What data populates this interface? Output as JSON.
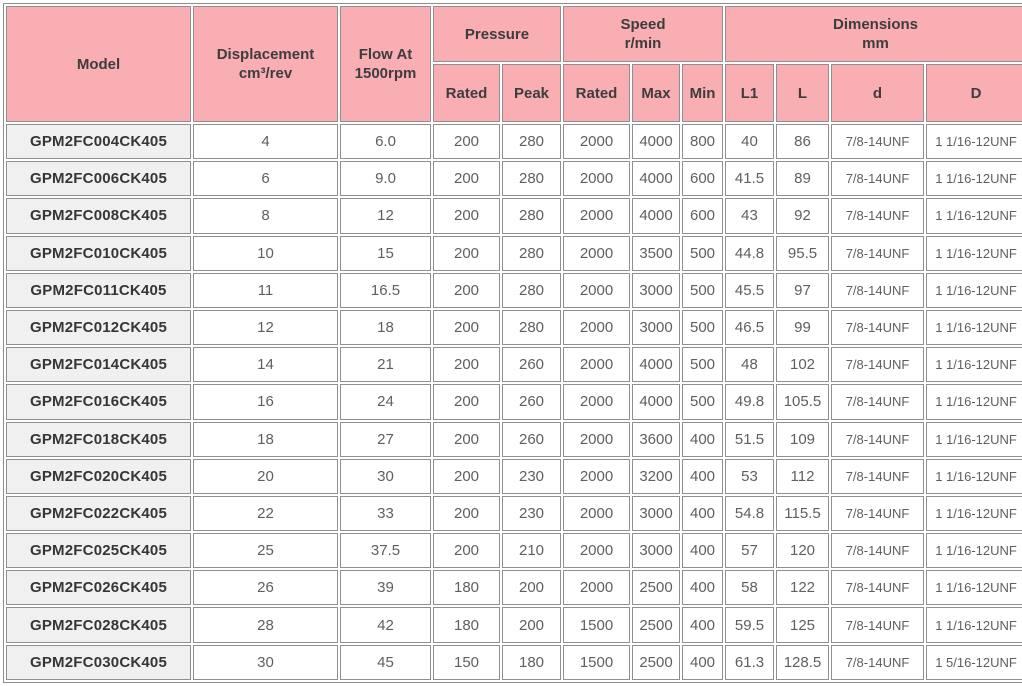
{
  "colors": {
    "header_background": "#f9aeb4",
    "model_column_background": "#f0f0f0",
    "grid_border": "#8f8f8f",
    "header_text": "#3d3d3d",
    "data_text": "#5f5f5f"
  },
  "table": {
    "header": {
      "model": "Model",
      "displacement_line1": "Displacement",
      "displacement_line2": "cm³/rev",
      "flow_line1": "Flow At",
      "flow_line2": "1500rpm",
      "pressure": "Pressure",
      "speed_line1": "Speed",
      "speed_line2": "r/min",
      "dimensions_line1": "Dimensions",
      "dimensions_line2": "mm",
      "pressure_rated": "Rated",
      "pressure_peak": "Peak",
      "speed_rated": "Rated",
      "speed_max": "Max",
      "speed_min": "Min",
      "l1": "L1",
      "l": "L",
      "d": "d",
      "D": "D"
    },
    "columns": [
      "model",
      "displacement",
      "flow",
      "pressure_rated",
      "pressure_peak",
      "speed_rated",
      "speed_max",
      "speed_min",
      "l1",
      "l",
      "d",
      "D"
    ],
    "rows": [
      {
        "model": "GPM2FC004CK405",
        "displacement": "4",
        "flow": "6.0",
        "pressure_rated": "200",
        "pressure_peak": "280",
        "speed_rated": "2000",
        "speed_max": "4000",
        "speed_min": "800",
        "l1": "40",
        "l": "86",
        "d": "7/8-14UNF",
        "D": "1 1/16-12UNF"
      },
      {
        "model": "GPM2FC006CK405",
        "displacement": "6",
        "flow": "9.0",
        "pressure_rated": "200",
        "pressure_peak": "280",
        "speed_rated": "2000",
        "speed_max": "4000",
        "speed_min": "600",
        "l1": "41.5",
        "l": "89",
        "d": "7/8-14UNF",
        "D": "1 1/16-12UNF"
      },
      {
        "model": "GPM2FC008CK405",
        "displacement": "8",
        "flow": "12",
        "pressure_rated": "200",
        "pressure_peak": "280",
        "speed_rated": "2000",
        "speed_max": "4000",
        "speed_min": "600",
        "l1": "43",
        "l": "92",
        "d": "7/8-14UNF",
        "D": "1 1/16-12UNF"
      },
      {
        "model": "GPM2FC010CK405",
        "displacement": "10",
        "flow": "15",
        "pressure_rated": "200",
        "pressure_peak": "280",
        "speed_rated": "2000",
        "speed_max": "3500",
        "speed_min": "500",
        "l1": "44.8",
        "l": "95.5",
        "d": "7/8-14UNF",
        "D": "1 1/16-12UNF"
      },
      {
        "model": "GPM2FC011CK405",
        "displacement": "11",
        "flow": "16.5",
        "pressure_rated": "200",
        "pressure_peak": "280",
        "speed_rated": "2000",
        "speed_max": "3000",
        "speed_min": "500",
        "l1": "45.5",
        "l": "97",
        "d": "7/8-14UNF",
        "D": "1 1/16-12UNF"
      },
      {
        "model": "GPM2FC012CK405",
        "displacement": "12",
        "flow": "18",
        "pressure_rated": "200",
        "pressure_peak": "280",
        "speed_rated": "2000",
        "speed_max": "3000",
        "speed_min": "500",
        "l1": "46.5",
        "l": "99",
        "d": "7/8-14UNF",
        "D": "1 1/16-12UNF"
      },
      {
        "model": "GPM2FC014CK405",
        "displacement": "14",
        "flow": "21",
        "pressure_rated": "200",
        "pressure_peak": "260",
        "speed_rated": "2000",
        "speed_max": "4000",
        "speed_min": "500",
        "l1": "48",
        "l": "102",
        "d": "7/8-14UNF",
        "D": "1 1/16-12UNF"
      },
      {
        "model": "GPM2FC016CK405",
        "displacement": "16",
        "flow": "24",
        "pressure_rated": "200",
        "pressure_peak": "260",
        "speed_rated": "2000",
        "speed_max": "4000",
        "speed_min": "500",
        "l1": "49.8",
        "l": "105.5",
        "d": "7/8-14UNF",
        "D": "1 1/16-12UNF"
      },
      {
        "model": "GPM2FC018CK405",
        "displacement": "18",
        "flow": "27",
        "pressure_rated": "200",
        "pressure_peak": "260",
        "speed_rated": "2000",
        "speed_max": "3600",
        "speed_min": "400",
        "l1": "51.5",
        "l": "109",
        "d": "7/8-14UNF",
        "D": "1 1/16-12UNF"
      },
      {
        "model": "GPM2FC020CK405",
        "displacement": "20",
        "flow": "30",
        "pressure_rated": "200",
        "pressure_peak": "230",
        "speed_rated": "2000",
        "speed_max": "3200",
        "speed_min": "400",
        "l1": "53",
        "l": "112",
        "d": "7/8-14UNF",
        "D": "1 1/16-12UNF"
      },
      {
        "model": "GPM2FC022CK405",
        "displacement": "22",
        "flow": "33",
        "pressure_rated": "200",
        "pressure_peak": "230",
        "speed_rated": "2000",
        "speed_max": "3000",
        "speed_min": "400",
        "l1": "54.8",
        "l": "115.5",
        "d": "7/8-14UNF",
        "D": "1 1/16-12UNF"
      },
      {
        "model": "GPM2FC025CK405",
        "displacement": "25",
        "flow": "37.5",
        "pressure_rated": "200",
        "pressure_peak": "210",
        "speed_rated": "2000",
        "speed_max": "3000",
        "speed_min": "400",
        "l1": "57",
        "l": "120",
        "d": "7/8-14UNF",
        "D": "1 1/16-12UNF"
      },
      {
        "model": "GPM2FC026CK405",
        "displacement": "26",
        "flow": "39",
        "pressure_rated": "180",
        "pressure_peak": "200",
        "speed_rated": "2000",
        "speed_max": "2500",
        "speed_min": "400",
        "l1": "58",
        "l": "122",
        "d": "7/8-14UNF",
        "D": "1 1/16-12UNF"
      },
      {
        "model": "GPM2FC028CK405",
        "displacement": "28",
        "flow": "42",
        "pressure_rated": "180",
        "pressure_peak": "200",
        "speed_rated": "1500",
        "speed_max": "2500",
        "speed_min": "400",
        "l1": "59.5",
        "l": "125",
        "d": "7/8-14UNF",
        "D": "1 1/16-12UNF"
      },
      {
        "model": "GPM2FC030CK405",
        "displacement": "30",
        "flow": "45",
        "pressure_rated": "150",
        "pressure_peak": "180",
        "speed_rated": "1500",
        "speed_max": "2500",
        "speed_min": "400",
        "l1": "61.3",
        "l": "128.5",
        "d": "7/8-14UNF",
        "D": "1 5/16-12UNF"
      }
    ]
  }
}
